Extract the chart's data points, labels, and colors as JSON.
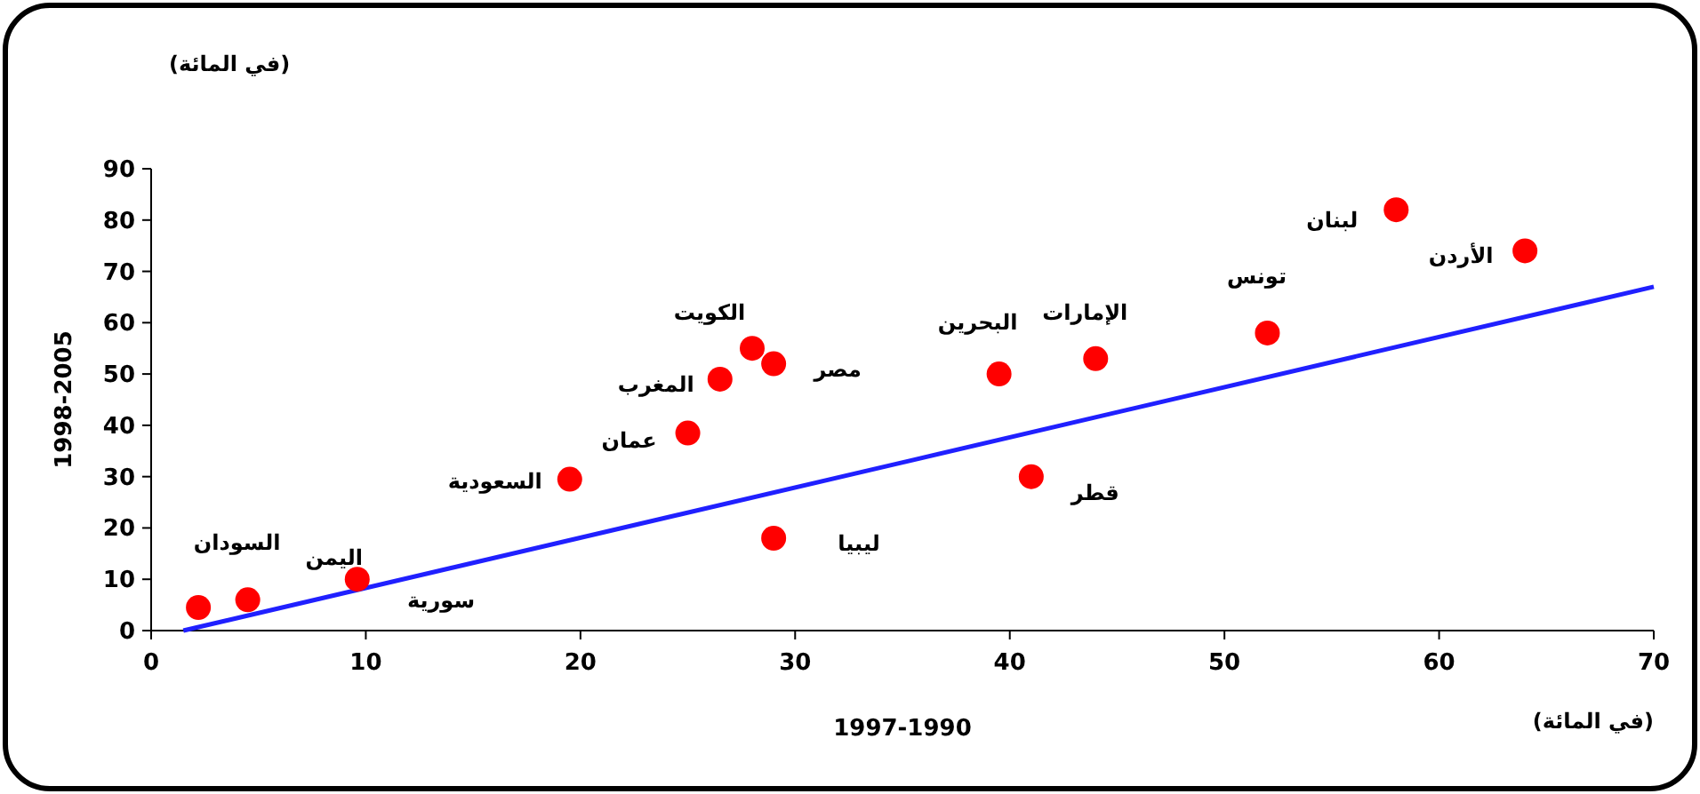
{
  "chart_data": {
    "type": "scatter",
    "xlabel": "1997-1990",
    "ylabel": "1998-2005",
    "xlim": [
      0,
      70
    ],
    "ylim": [
      0,
      90
    ],
    "xticks": [
      0,
      10,
      20,
      30,
      40,
      50,
      60,
      70
    ],
    "yticks": [
      0,
      10,
      20,
      30,
      40,
      50,
      60,
      70,
      80,
      90
    ],
    "grid": false,
    "series": [
      {
        "type": "scatter",
        "marker": "circle",
        "color": "#ff0000",
        "x": [
          2.2,
          4.5,
          9.6,
          19.5,
          25,
          26.5,
          28,
          29,
          29,
          39.5,
          41,
          44,
          52,
          58,
          64
        ],
        "values": [
          4.5,
          6,
          10,
          29.5,
          38.5,
          49,
          55,
          52,
          18,
          50,
          30,
          53,
          58,
          82,
          74
        ]
      },
      {
        "type": "line",
        "color": "#2020ff",
        "x": [
          1.5,
          70
        ],
        "values": [
          0,
          67
        ]
      }
    ],
    "annotations": [
      "(في المائة)",
      "(في المائة)",
      "سورية",
      "ليبيا",
      {
        "text": "السودان",
        "x": 4.5,
        "y": 6
      },
      {
        "text": "اليمن",
        "x": 9.6,
        "y": 10
      },
      {
        "text": "السعودية",
        "x": 19.5,
        "y": 29.5
      },
      {
        "text": "عمان",
        "x": 25,
        "y": 38.5
      },
      {
        "text": "المغرب",
        "x": 26.5,
        "y": 49
      },
      {
        "text": "الكويت",
        "x": 28,
        "y": 55
      },
      {
        "text": "مصر",
        "x": 29,
        "y": 52
      },
      {
        "text": "البحرين",
        "x": 39.5,
        "y": 50
      },
      {
        "text": "قطر",
        "x": 41,
        "y": 30
      },
      {
        "text": "الإمارات",
        "x": 44,
        "y": 53
      },
      {
        "text": "تونس",
        "x": 52,
        "y": 58
      },
      {
        "text": "لبنان",
        "x": 58,
        "y": 82
      },
      {
        "text": "الأردن",
        "x": 64,
        "y": 74
      }
    ]
  }
}
